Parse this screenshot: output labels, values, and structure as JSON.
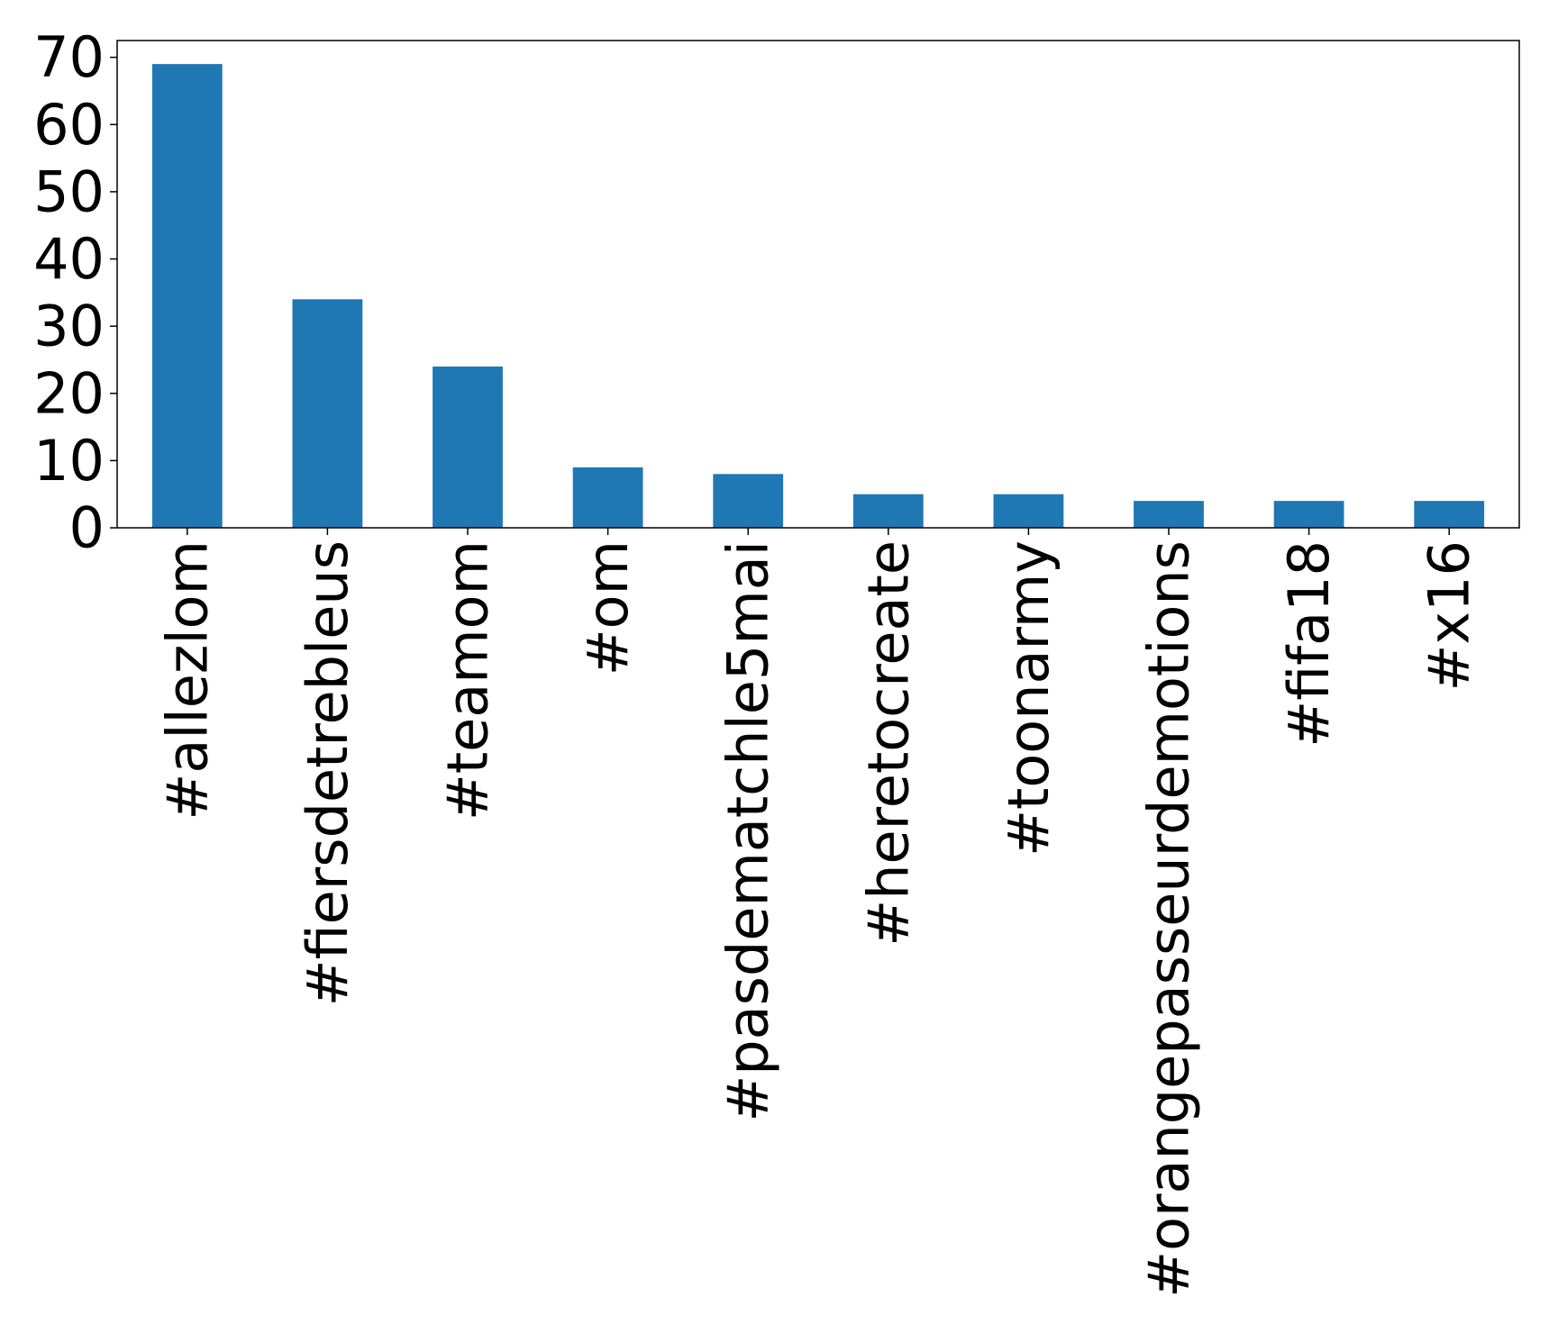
{
  "chart_data": {
    "type": "bar",
    "categories": [
      "#allezlom",
      "#fiersdetrebleus",
      "#teamom",
      "#om",
      "#pasdematchle5mai",
      "#heretocreate",
      "#toonarmy",
      "#orangepasseurdemotions",
      "#fifa18",
      "#x16"
    ],
    "values": [
      69,
      34,
      24,
      9,
      8,
      5,
      5,
      4,
      4,
      4
    ],
    "ylim": [
      0,
      72.5
    ],
    "yticks": [
      0,
      10,
      20,
      30,
      40,
      50,
      60,
      70
    ],
    "ytick_labels": [
      "0",
      "10",
      "20",
      "30",
      "40",
      "50",
      "60",
      "70"
    ],
    "title": "",
    "xlabel": "",
    "ylabel": "",
    "bar_color": "#1f77b4",
    "grid": false,
    "legend": "none"
  }
}
